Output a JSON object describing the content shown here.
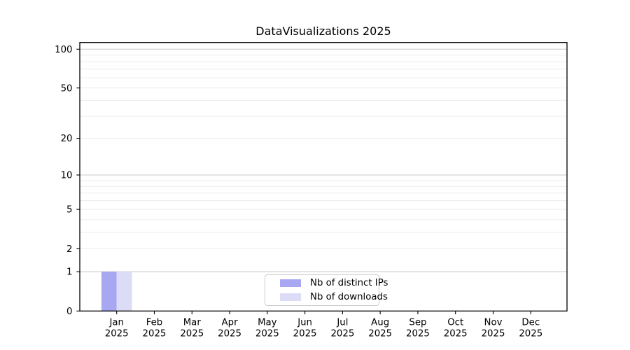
{
  "figure": {
    "background": "#ffffff"
  },
  "chart_data": {
    "type": "bar",
    "title": "DataVisualizations 2025",
    "xlabel": "",
    "ylabel": "",
    "categories": [
      "Jan",
      "Feb",
      "Mar",
      "Apr",
      "May",
      "Jun",
      "Jul",
      "Aug",
      "Sep",
      "Oct",
      "Nov",
      "Dec"
    ],
    "category_sublabel": "2025",
    "series": [
      {
        "name": "Nb of distinct IPs",
        "color": "#a7a7f2",
        "values": [
          1,
          0,
          0,
          0,
          0,
          0,
          0,
          0,
          0,
          0,
          0,
          0
        ]
      },
      {
        "name": "Nb of downloads",
        "color": "#dcdcf7",
        "values": [
          1,
          0,
          0,
          0,
          0,
          0,
          0,
          0,
          0,
          0,
          0,
          0
        ]
      }
    ],
    "y_scale": "log1p",
    "ylim": [
      0,
      113
    ],
    "y_tick_values": [
      0,
      1,
      2,
      5,
      10,
      20,
      50,
      100
    ],
    "grid_major_values": [
      1,
      10,
      100
    ],
    "grid_minor_values": [
      2,
      3,
      4,
      5,
      6,
      7,
      8,
      9,
      20,
      30,
      40,
      50,
      60,
      70,
      80,
      90
    ],
    "grid": true,
    "legend_position": "lower center",
    "colors": {
      "grid_major": "#c8c8c8",
      "grid_minor": "#ececec",
      "spine": "#000000",
      "legend_border": "#cccccc",
      "text": "#000000"
    }
  }
}
